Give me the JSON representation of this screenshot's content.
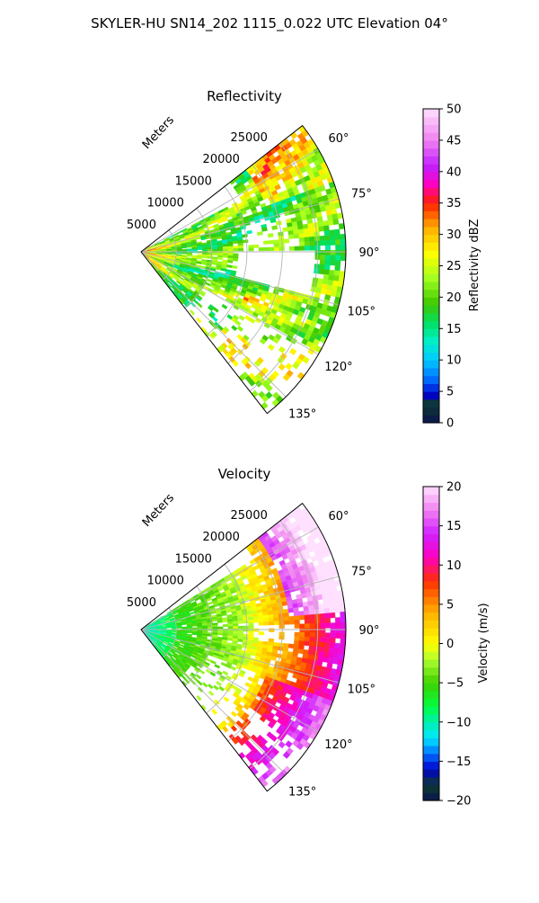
{
  "figure": {
    "suptitle": "SKYLER-HU  SN14_202  1115_0.022 UTC Elevation 04°"
  },
  "chart_data": [
    {
      "type": "heatmap",
      "projection": "polar-sector",
      "title": "Reflectivity",
      "range_axis_label": "Meters",
      "range_ticks": [
        5000,
        10000,
        15000,
        20000,
        25000
      ],
      "range_tick_labels": [
        "5000",
        "10000",
        "15000",
        "20000",
        "25000"
      ],
      "range_max": 29000,
      "azimuth_range_deg": [
        52,
        142
      ],
      "azimuth_ticks": [
        60,
        75,
        90,
        105,
        120,
        135
      ],
      "azimuth_tick_labels": [
        "60°",
        "75°",
        "90°",
        "105°",
        "120°",
        "135°"
      ],
      "grid": true,
      "colorbar": {
        "label": "Reflectivity dBZ",
        "min": 0,
        "max": 50,
        "ticks": [
          0,
          5,
          10,
          15,
          20,
          25,
          30,
          35,
          40,
          45,
          50
        ],
        "tick_labels": [
          "0",
          "5",
          "10",
          "15",
          "20",
          "25",
          "30",
          "35",
          "40",
          "45",
          "50"
        ],
        "stops": [
          {
            "v": 0,
            "c": "#0a1450"
          },
          {
            "v": 3,
            "c": "#0d3b2e"
          },
          {
            "v": 4.5,
            "c": "#0000cc"
          },
          {
            "v": 7,
            "c": "#0070ff"
          },
          {
            "v": 10,
            "c": "#00c8ff"
          },
          {
            "v": 13,
            "c": "#00f0c8"
          },
          {
            "v": 16,
            "c": "#00e060"
          },
          {
            "v": 19,
            "c": "#40c800"
          },
          {
            "v": 23,
            "c": "#a0ff20"
          },
          {
            "v": 27,
            "c": "#ffff00"
          },
          {
            "v": 31,
            "c": "#ffb000"
          },
          {
            "v": 35,
            "c": "#ff2000"
          },
          {
            "v": 38,
            "c": "#ff00c0"
          },
          {
            "v": 41,
            "c": "#c020ff"
          },
          {
            "v": 45,
            "c": "#f080f0"
          },
          {
            "v": 50,
            "c": "#ffe0ff"
          }
        ]
      }
    },
    {
      "type": "heatmap",
      "projection": "polar-sector",
      "title": "Velocity",
      "range_axis_label": "Meters",
      "range_ticks": [
        5000,
        10000,
        15000,
        20000,
        25000
      ],
      "range_tick_labels": [
        "5000",
        "10000",
        "15000",
        "20000",
        "25000"
      ],
      "range_max": 29000,
      "azimuth_range_deg": [
        52,
        142
      ],
      "azimuth_ticks": [
        60,
        75,
        90,
        105,
        120,
        135
      ],
      "azimuth_tick_labels": [
        "60°",
        "75°",
        "90°",
        "105°",
        "120°",
        "135°"
      ],
      "grid": true,
      "colorbar": {
        "label": "Velocity (m/s)",
        "min": -20,
        "max": 20,
        "ticks": [
          -20,
          -15,
          -10,
          -5,
          0,
          5,
          10,
          15,
          20
        ],
        "tick_labels": [
          "−20",
          "−15",
          "−10",
          "−5",
          "0",
          "5",
          "10",
          "15",
          "20"
        ],
        "stops": [
          {
            "v": -20,
            "c": "#0a1450"
          },
          {
            "v": -18,
            "c": "#0d3b2e"
          },
          {
            "v": -16,
            "c": "#0000cc"
          },
          {
            "v": -14,
            "c": "#0070ff"
          },
          {
            "v": -12,
            "c": "#00e8ff"
          },
          {
            "v": -10,
            "c": "#00f0b0"
          },
          {
            "v": -8,
            "c": "#00ff40"
          },
          {
            "v": -5,
            "c": "#40d000"
          },
          {
            "v": -2,
            "c": "#b0ff30"
          },
          {
            "v": 0,
            "c": "#ffff00"
          },
          {
            "v": 4,
            "c": "#ffb000"
          },
          {
            "v": 8,
            "c": "#ff3000"
          },
          {
            "v": 11,
            "c": "#ff00c0"
          },
          {
            "v": 14,
            "c": "#d020ff"
          },
          {
            "v": 17,
            "c": "#f080f0"
          },
          {
            "v": 20,
            "c": "#ffe0ff"
          }
        ]
      }
    }
  ]
}
